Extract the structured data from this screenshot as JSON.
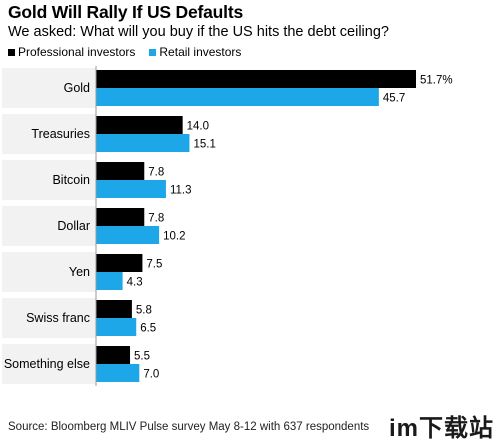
{
  "title": "Gold Will Rally If US Defaults",
  "subtitle": "We asked: What will you buy if the US hits the debt ceiling?",
  "source": "Source: Bloomberg MLIV Pulse survey May 8-12 with 637 respondents",
  "watermark": "im下载站",
  "colors": {
    "professional": "#000000",
    "retail": "#1ea7e8",
    "band": "#f2f2f2",
    "axis": "#999999"
  },
  "chart_data": {
    "type": "bar",
    "orientation": "horizontal",
    "title": "Gold Will Rally If US Defaults",
    "subtitle": "We asked: What will you buy if the US hits the debt ceiling?",
    "categories": [
      "Gold",
      "Treasuries",
      "Bitcoin",
      "Dollar",
      "Yen",
      "Swiss franc",
      "Something else"
    ],
    "series": [
      {
        "name": "Professional investors",
        "values": [
          51.7,
          14.0,
          7.8,
          7.8,
          7.5,
          5.8,
          5.5
        ],
        "labels": [
          "51.7%",
          "14.0",
          "7.8",
          "7.8",
          "7.5",
          "5.8",
          "5.5"
        ]
      },
      {
        "name": "Retail investors",
        "values": [
          45.7,
          15.1,
          11.3,
          10.2,
          4.3,
          6.5,
          7.0
        ],
        "labels": [
          "45.7",
          "15.1",
          "11.3",
          "10.2",
          "4.3",
          "6.5",
          "7.0"
        ]
      }
    ],
    "xlim": [
      0,
      51.7
    ],
    "legend": "top-left",
    "grid": false
  }
}
